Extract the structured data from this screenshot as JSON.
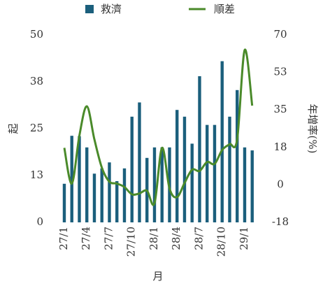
{
  "chart_data": {
    "type": "bar_line",
    "categories": [
      "27/1",
      null,
      null,
      "27/4",
      null,
      null,
      "27/7",
      null,
      null,
      "27/10",
      null,
      null,
      "28/1",
      null,
      null,
      "28/4",
      null,
      null,
      "28/7",
      null,
      null,
      "28/10",
      null,
      null,
      "29/1",
      null
    ],
    "series": [
      {
        "name": "救濟",
        "type": "bar",
        "color": "#1b5f7c",
        "values": [
          10.3,
          23.1,
          23,
          20,
          13,
          14.4,
          16,
          11,
          14.4,
          28.2,
          32,
          17.2,
          20,
          20,
          20,
          30,
          28.2,
          21,
          39,
          26,
          26,
          43,
          28.2,
          35.3,
          20,
          19.2
        ]
      },
      {
        "name": "順差",
        "type": "line",
        "axis": "y2",
        "color": "#4a8a2a",
        "values": [
          17.3,
          0.6,
          22.9,
          36.7,
          21.3,
          8,
          1.5,
          0.6,
          -1,
          -4.4,
          -4,
          -2.7,
          -8.6,
          17.3,
          -1.7,
          -5.7,
          0.9,
          7.1,
          6.5,
          10.7,
          9.8,
          16.3,
          19,
          21.3,
          63,
          37
        ]
      }
    ],
    "xlabel": "月",
    "ylabel": "起",
    "y2label": "年增率(%)",
    "ylim": [
      0,
      50
    ],
    "yticks": [
      0,
      {
        "value": 12.5,
        "label": "13"
      },
      25,
      {
        "value": 37.5,
        "label": "38"
      },
      50
    ],
    "y2lim": [
      -17.5,
      70
    ],
    "y2ticks": [
      {
        "value": -17.5,
        "label": "-18"
      },
      0,
      {
        "value": 17.5,
        "label": "18"
      },
      35,
      {
        "value": 52.5,
        "label": "53"
      },
      70
    ],
    "legend": "top"
  }
}
